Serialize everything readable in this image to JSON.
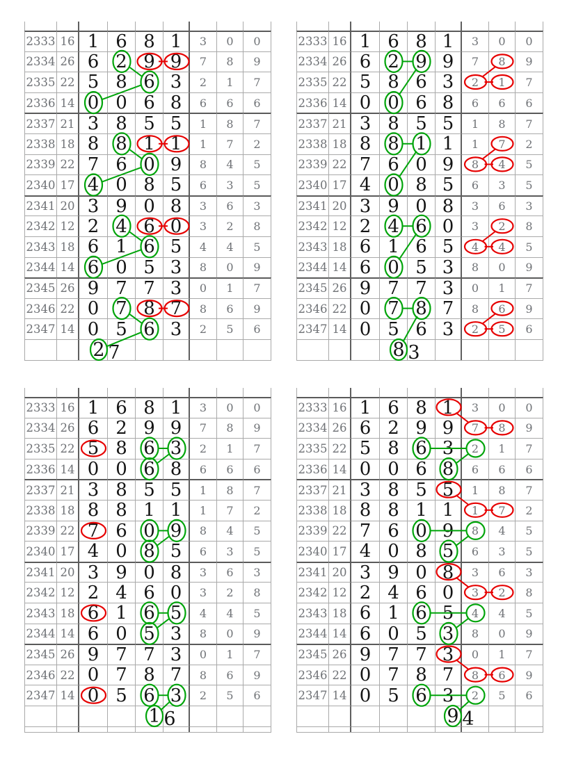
{
  "page": {
    "background": "#ffffff"
  },
  "colors": {
    "green": "#00a40a",
    "red": "#e60000",
    "grid_thin": "#a9a9a9",
    "grid_thick": "#5a5a5a",
    "big_digit": "#141414",
    "gray_digit": "#6f7276"
  },
  "rows": [
    {
      "period": "2333",
      "sum": "16",
      "big": [
        "1",
        "6",
        "8",
        "1"
      ],
      "small": [
        "3",
        "0",
        "0"
      ]
    },
    {
      "period": "2334",
      "sum": "26",
      "big": [
        "6",
        "2",
        "9",
        "9"
      ],
      "small": [
        "7",
        "8",
        "9"
      ]
    },
    {
      "period": "2335",
      "sum": "22",
      "big": [
        "5",
        "8",
        "6",
        "3"
      ],
      "small": [
        "2",
        "1",
        "7"
      ]
    },
    {
      "period": "2336",
      "sum": "14",
      "big": [
        "0",
        "0",
        "6",
        "8"
      ],
      "small": [
        "6",
        "6",
        "6"
      ]
    },
    {
      "period": "2337",
      "sum": "21",
      "big": [
        "3",
        "8",
        "5",
        "5"
      ],
      "small": [
        "1",
        "8",
        "7"
      ]
    },
    {
      "period": "2338",
      "sum": "18",
      "big": [
        "8",
        "8",
        "1",
        "1"
      ],
      "small": [
        "1",
        "7",
        "2"
      ]
    },
    {
      "period": "2339",
      "sum": "22",
      "big": [
        "7",
        "6",
        "0",
        "9"
      ],
      "small": [
        "8",
        "4",
        "5"
      ]
    },
    {
      "period": "2340",
      "sum": "17",
      "big": [
        "4",
        "0",
        "8",
        "5"
      ],
      "small": [
        "6",
        "3",
        "5"
      ]
    },
    {
      "period": "2341",
      "sum": "20",
      "big": [
        "3",
        "9",
        "0",
        "8"
      ],
      "small": [
        "3",
        "6",
        "3"
      ]
    },
    {
      "period": "2342",
      "sum": "12",
      "big": [
        "2",
        "4",
        "6",
        "0"
      ],
      "small": [
        "3",
        "2",
        "8"
      ]
    },
    {
      "period": "2343",
      "sum": "18",
      "big": [
        "6",
        "1",
        "6",
        "5"
      ],
      "small": [
        "4",
        "4",
        "5"
      ]
    },
    {
      "period": "2344",
      "sum": "14",
      "big": [
        "6",
        "0",
        "5",
        "3"
      ],
      "small": [
        "8",
        "0",
        "9"
      ]
    },
    {
      "period": "2345",
      "sum": "26",
      "big": [
        "9",
        "7",
        "7",
        "3"
      ],
      "small": [
        "0",
        "1",
        "7"
      ]
    },
    {
      "period": "2346",
      "sum": "22",
      "big": [
        "0",
        "7",
        "8",
        "7"
      ],
      "small": [
        "8",
        "6",
        "9"
      ]
    },
    {
      "period": "2347",
      "sum": "14",
      "big": [
        "0",
        "5",
        "6",
        "3"
      ],
      "small": [
        "2",
        "5",
        "6"
      ]
    }
  ],
  "tables": [
    {
      "name": "top-left",
      "prediction": {
        "value": "27",
        "first": "2",
        "second": "7",
        "boundary": "b1|b2"
      },
      "green_circles": [
        [
          1,
          "b2"
        ],
        [
          2,
          "b3"
        ],
        [
          3,
          "b1"
        ],
        [
          5,
          "b2"
        ],
        [
          6,
          "b3"
        ],
        [
          7,
          "b1"
        ],
        [
          9,
          "b2"
        ],
        [
          10,
          "b3"
        ],
        [
          11,
          "b1"
        ],
        [
          13,
          "b2"
        ],
        [
          14,
          "b3"
        ],
        [
          "pred",
          "first"
        ]
      ],
      "red_circles": [
        [
          1,
          "b3"
        ],
        [
          1,
          "b4"
        ],
        [
          5,
          "b3"
        ],
        [
          5,
          "b4"
        ],
        [
          9,
          "b3"
        ],
        [
          9,
          "b4"
        ],
        [
          13,
          "b3"
        ],
        [
          13,
          "b4"
        ]
      ],
      "green_lines": [
        [
          [
            1,
            "b2"
          ],
          [
            2,
            "b3"
          ]
        ],
        [
          [
            2,
            "b3"
          ],
          [
            3,
            "b1"
          ]
        ],
        [
          [
            5,
            "b2"
          ],
          [
            6,
            "b3"
          ]
        ],
        [
          [
            6,
            "b3"
          ],
          [
            7,
            "b1"
          ]
        ],
        [
          [
            9,
            "b2"
          ],
          [
            10,
            "b3"
          ]
        ],
        [
          [
            10,
            "b3"
          ],
          [
            11,
            "b1"
          ]
        ],
        [
          [
            13,
            "b2"
          ],
          [
            14,
            "b3"
          ]
        ],
        [
          [
            14,
            "b3"
          ],
          [
            "pred",
            "first"
          ]
        ]
      ],
      "red_lines": [
        [
          [
            1,
            "b3"
          ],
          [
            1,
            "b4"
          ]
        ],
        [
          [
            5,
            "b3"
          ],
          [
            5,
            "b4"
          ]
        ],
        [
          [
            9,
            "b3"
          ],
          [
            9,
            "b4"
          ]
        ],
        [
          [
            13,
            "b3"
          ],
          [
            13,
            "b4"
          ]
        ]
      ]
    },
    {
      "name": "top-right",
      "prediction": {
        "value": "83",
        "first": "8",
        "second": "3",
        "boundary": "b2|b3"
      },
      "green_circles": [
        [
          1,
          "b2"
        ],
        [
          1,
          "b3"
        ],
        [
          3,
          "b2"
        ],
        [
          5,
          "b2"
        ],
        [
          5,
          "b3"
        ],
        [
          7,
          "b2"
        ],
        [
          9,
          "b2"
        ],
        [
          9,
          "b3"
        ],
        [
          11,
          "b2"
        ],
        [
          13,
          "b2"
        ],
        [
          13,
          "b3"
        ],
        [
          "pred",
          "first"
        ]
      ],
      "red_circles": [
        [
          1,
          "s2"
        ],
        [
          2,
          "s1"
        ],
        [
          2,
          "s2"
        ],
        [
          5,
          "s2"
        ],
        [
          6,
          "s1"
        ],
        [
          6,
          "s2"
        ],
        [
          9,
          "s2"
        ],
        [
          10,
          "s1"
        ],
        [
          10,
          "s2"
        ],
        [
          13,
          "s2"
        ],
        [
          14,
          "s1"
        ],
        [
          14,
          "s2"
        ]
      ],
      "green_lines": [
        [
          [
            1,
            "b2"
          ],
          [
            1,
            "b3"
          ]
        ],
        [
          [
            1,
            "b3"
          ],
          [
            3,
            "b2"
          ]
        ],
        [
          [
            5,
            "b2"
          ],
          [
            5,
            "b3"
          ]
        ],
        [
          [
            5,
            "b3"
          ],
          [
            7,
            "b2"
          ]
        ],
        [
          [
            9,
            "b2"
          ],
          [
            9,
            "b3"
          ]
        ],
        [
          [
            9,
            "b3"
          ],
          [
            11,
            "b2"
          ]
        ],
        [
          [
            13,
            "b2"
          ],
          [
            13,
            "b3"
          ]
        ],
        [
          [
            13,
            "b3"
          ],
          [
            "pred",
            "first"
          ]
        ]
      ],
      "red_lines": [
        [
          [
            1,
            "s2"
          ],
          [
            2,
            "s1"
          ]
        ],
        [
          [
            2,
            "s1"
          ],
          [
            2,
            "s2"
          ]
        ],
        [
          [
            5,
            "s2"
          ],
          [
            6,
            "s1"
          ]
        ],
        [
          [
            6,
            "s1"
          ],
          [
            6,
            "s2"
          ]
        ],
        [
          [
            9,
            "s2"
          ],
          [
            10,
            "s1"
          ]
        ],
        [
          [
            10,
            "s1"
          ],
          [
            10,
            "s2"
          ]
        ],
        [
          [
            13,
            "s2"
          ],
          [
            14,
            "s1"
          ]
        ],
        [
          [
            14,
            "s1"
          ],
          [
            14,
            "s2"
          ]
        ]
      ]
    },
    {
      "name": "bottom-left",
      "prediction": {
        "value": "16",
        "first": "1",
        "second": "6",
        "boundary": "b3|b4"
      },
      "green_circles": [
        [
          2,
          "b3"
        ],
        [
          2,
          "b4"
        ],
        [
          3,
          "b3"
        ],
        [
          6,
          "b3"
        ],
        [
          6,
          "b4"
        ],
        [
          7,
          "b3"
        ],
        [
          10,
          "b3"
        ],
        [
          10,
          "b4"
        ],
        [
          11,
          "b3"
        ],
        [
          14,
          "b3"
        ],
        [
          14,
          "b4"
        ],
        [
          "pred",
          "first"
        ]
      ],
      "red_circles": [
        [
          2,
          "b1"
        ],
        [
          6,
          "b1"
        ],
        [
          10,
          "b1"
        ],
        [
          14,
          "b1"
        ]
      ],
      "green_lines": [
        [
          [
            2,
            "b3"
          ],
          [
            2,
            "b4"
          ]
        ],
        [
          [
            2,
            "b4"
          ],
          [
            3,
            "b3"
          ]
        ],
        [
          [
            6,
            "b3"
          ],
          [
            6,
            "b4"
          ]
        ],
        [
          [
            6,
            "b4"
          ],
          [
            7,
            "b3"
          ]
        ],
        [
          [
            10,
            "b3"
          ],
          [
            10,
            "b4"
          ]
        ],
        [
          [
            10,
            "b4"
          ],
          [
            11,
            "b3"
          ]
        ],
        [
          [
            14,
            "b3"
          ],
          [
            14,
            "b4"
          ]
        ],
        [
          [
            14,
            "b4"
          ],
          [
            "pred",
            "first"
          ]
        ]
      ],
      "red_lines": []
    },
    {
      "name": "bottom-right",
      "prediction": {
        "value": "94",
        "first": "9",
        "second": "4",
        "boundary": "b4|s1"
      },
      "green_circles": [
        [
          2,
          "b3"
        ],
        [
          2,
          "s1"
        ],
        [
          3,
          "b4"
        ],
        [
          6,
          "b3"
        ],
        [
          6,
          "s1"
        ],
        [
          7,
          "b4"
        ],
        [
          10,
          "b3"
        ],
        [
          10,
          "s1"
        ],
        [
          11,
          "b4"
        ],
        [
          14,
          "b3"
        ],
        [
          14,
          "s1"
        ],
        [
          "pred",
          "first"
        ]
      ],
      "red_circles": [
        [
          0,
          "b4"
        ],
        [
          1,
          "s1"
        ],
        [
          1,
          "s2"
        ],
        [
          4,
          "b4"
        ],
        [
          5,
          "s1"
        ],
        [
          5,
          "s2"
        ],
        [
          8,
          "b4"
        ],
        [
          9,
          "s1"
        ],
        [
          9,
          "s2"
        ],
        [
          12,
          "b4"
        ],
        [
          13,
          "s1"
        ],
        [
          13,
          "s2"
        ]
      ],
      "green_lines": [
        [
          [
            2,
            "b3"
          ],
          [
            2,
            "s1"
          ]
        ],
        [
          [
            2,
            "s1"
          ],
          [
            3,
            "b4"
          ]
        ],
        [
          [
            6,
            "b3"
          ],
          [
            6,
            "s1"
          ]
        ],
        [
          [
            6,
            "s1"
          ],
          [
            7,
            "b4"
          ]
        ],
        [
          [
            10,
            "b3"
          ],
          [
            10,
            "s1"
          ]
        ],
        [
          [
            10,
            "s1"
          ],
          [
            11,
            "b4"
          ]
        ],
        [
          [
            14,
            "b3"
          ],
          [
            14,
            "s1"
          ]
        ],
        [
          [
            14,
            "s1"
          ],
          [
            "pred",
            "first"
          ]
        ]
      ],
      "red_lines": [
        [
          [
            0,
            "b4"
          ],
          [
            1,
            "s1"
          ]
        ],
        [
          [
            1,
            "s1"
          ],
          [
            1,
            "s2"
          ]
        ],
        [
          [
            4,
            "b4"
          ],
          [
            5,
            "s1"
          ]
        ],
        [
          [
            5,
            "s1"
          ],
          [
            5,
            "s2"
          ]
        ],
        [
          [
            8,
            "b4"
          ],
          [
            9,
            "s1"
          ]
        ],
        [
          [
            9,
            "s1"
          ],
          [
            9,
            "s2"
          ]
        ],
        [
          [
            12,
            "b4"
          ],
          [
            13,
            "s1"
          ]
        ],
        [
          [
            13,
            "s1"
          ],
          [
            13,
            "s2"
          ]
        ]
      ]
    }
  ],
  "chart_data": {
    "type": "table",
    "title": "",
    "columns": [
      "period",
      "sum",
      "digit1",
      "digit2",
      "digit3",
      "digit4",
      "tail1",
      "tail2",
      "tail3"
    ],
    "rows": [
      [
        2333,
        16,
        1,
        6,
        8,
        1,
        3,
        0,
        0
      ],
      [
        2334,
        26,
        6,
        2,
        9,
        9,
        7,
        8,
        9
      ],
      [
        2335,
        22,
        5,
        8,
        6,
        3,
        2,
        1,
        7
      ],
      [
        2336,
        14,
        0,
        0,
        6,
        8,
        6,
        6,
        6
      ],
      [
        2337,
        21,
        3,
        8,
        5,
        5,
        1,
        8,
        7
      ],
      [
        2338,
        18,
        8,
        8,
        1,
        1,
        1,
        7,
        2
      ],
      [
        2339,
        22,
        7,
        6,
        0,
        9,
        8,
        4,
        5
      ],
      [
        2340,
        17,
        4,
        0,
        8,
        5,
        6,
        3,
        5
      ],
      [
        2341,
        20,
        3,
        9,
        0,
        8,
        3,
        6,
        3
      ],
      [
        2342,
        12,
        2,
        4,
        6,
        0,
        3,
        2,
        8
      ],
      [
        2343,
        18,
        6,
        1,
        6,
        5,
        4,
        4,
        5
      ],
      [
        2344,
        14,
        6,
        0,
        5,
        3,
        8,
        0,
        9
      ],
      [
        2345,
        26,
        9,
        7,
        7,
        3,
        0,
        1,
        7
      ],
      [
        2346,
        22,
        0,
        7,
        8,
        7,
        8,
        6,
        9
      ],
      [
        2347,
        14,
        0,
        5,
        6,
        3,
        2,
        5,
        6
      ]
    ],
    "panel_predictions": [
      "27",
      "83",
      "16",
      "94"
    ],
    "legend_position": "none",
    "grid": true
  }
}
